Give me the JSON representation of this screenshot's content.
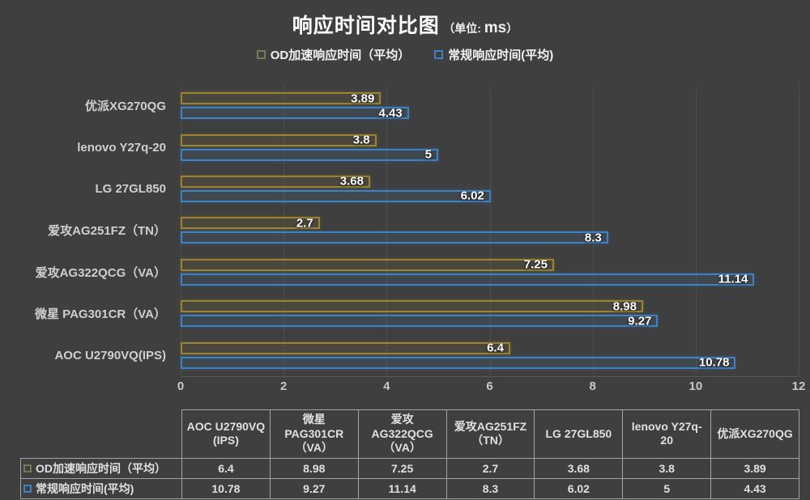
{
  "title": {
    "main": "响应时间对比图",
    "unit_prefix": "（单位: ",
    "unit_ms": "ms",
    "unit_suffix": "）"
  },
  "legend": [
    {
      "label": "OD加速响应时间（平均）",
      "color": "#6f7d4f"
    },
    {
      "label": "常规响应时间(平均)",
      "color": "#3e81c4"
    }
  ],
  "chart_data": {
    "type": "bar",
    "orientation": "horizontal",
    "title": "响应时间对比图（单位: ms）",
    "categories": [
      "优派XG270QG",
      "lenovo Y27q-20",
      "LG 27GL850",
      "爱攻AG251FZ（TN）",
      "爱攻AG322QCG（VA）",
      "微星 PAG301CR（VA）",
      "AOC U2790VQ(IPS)"
    ],
    "series": [
      {
        "name": "OD加速响应时间（平均）",
        "color": "#9a8433",
        "values": [
          3.89,
          3.8,
          3.68,
          2.7,
          7.25,
          8.98,
          6.4
        ]
      },
      {
        "name": "常规响应时间(平均)",
        "color": "#3e81c4",
        "values": [
          4.43,
          5,
          6.02,
          8.3,
          11.14,
          9.27,
          10.78
        ]
      }
    ],
    "xlim": [
      0,
      12
    ],
    "xticks": [
      0,
      2,
      4,
      6,
      8,
      10,
      12
    ],
    "grid": "vertical",
    "legend_position": "top"
  },
  "table": {
    "columns": [
      "AOC U2790VQ (IPS)",
      "微星PAG301CR（VA）",
      "爱攻AG322QCG（VA）",
      "爱攻AG251FZ（TN）",
      "LG 27GL850",
      "lenovo Y27q-20",
      "优派XG270QG"
    ],
    "rows": [
      {
        "label": "OD加速响应时间（平均）",
        "marker_color": "#6f7d4f",
        "values": [
          "6.4",
          "8.98",
          "7.25",
          "2.7",
          "3.68",
          "3.8",
          "3.89"
        ]
      },
      {
        "label": "常规响应时间(平均)",
        "marker_color": "#3e81c4",
        "values": [
          "10.78",
          "9.27",
          "11.14",
          "8.3",
          "6.02",
          "5",
          "4.43"
        ]
      }
    ]
  },
  "colors": {
    "background": "#3f3f3f",
    "od_bar": "#9a8433",
    "od_marker": "#6f7d4f",
    "regular_bar": "#3e81c4",
    "gridline": "#4d4d4d",
    "table_border": "#a3a3a3"
  }
}
